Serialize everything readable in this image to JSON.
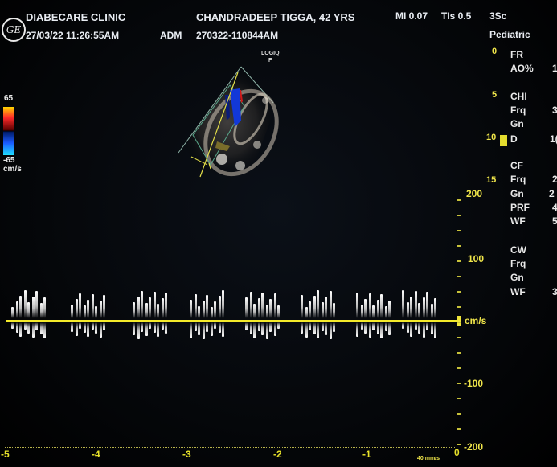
{
  "header": {
    "clinic_name": "DIABECARE CLINIC",
    "patient": "CHANDRADEEP TIGGA, 42 YRS",
    "mi": "MI 0.07",
    "tis": "TIs 0.5",
    "probe": "3Sc",
    "datetime": "27/03/22 11:26:55AM",
    "operator": "ADM",
    "exam_id": "270322-110844AM",
    "preset": "Pediatric"
  },
  "logo": {
    "icon": "ge-logo-icon",
    "text": "GE"
  },
  "image_panel": {
    "brand": "LOGIQ",
    "brand_sub": "F",
    "color_scale_top": "65",
    "color_scale_bottom": "-65",
    "color_scale_unit": "cm/s",
    "sector_depth_marks": [
      "0",
      "5",
      "10",
      "15"
    ]
  },
  "parameters": {
    "fr_label": "FR",
    "ao_label": "AO%",
    "ao_value": "1",
    "chi_label": "CHI",
    "chi_frq_label": "Frq",
    "chi_frq_value": "3",
    "chi_gn_label": "Gn",
    "d_label": "D",
    "d_value": "1(",
    "cf_label": "CF",
    "cf_frq_label": "Frq",
    "cf_frq_value": "2",
    "cf_gn_label": "Gn",
    "cf_gn_value": "2",
    "prf_label": "PRF",
    "prf_value": "4",
    "cf_wf_label": "WF",
    "cf_wf_value": "5",
    "cw_label": "CW",
    "cw_frq_label": "Frq",
    "cw_gn_label": "Gn",
    "cw_wf_label": "WF",
    "cw_wf_value": "3"
  },
  "doppler": {
    "y_ticks": [
      "200",
      "100",
      "cm/s",
      "-100",
      "-200"
    ],
    "x_ticks": [
      "-5",
      "-4",
      "-3",
      "-2",
      "-1",
      "0"
    ],
    "sweep_speed": "40 mm/s"
  }
}
